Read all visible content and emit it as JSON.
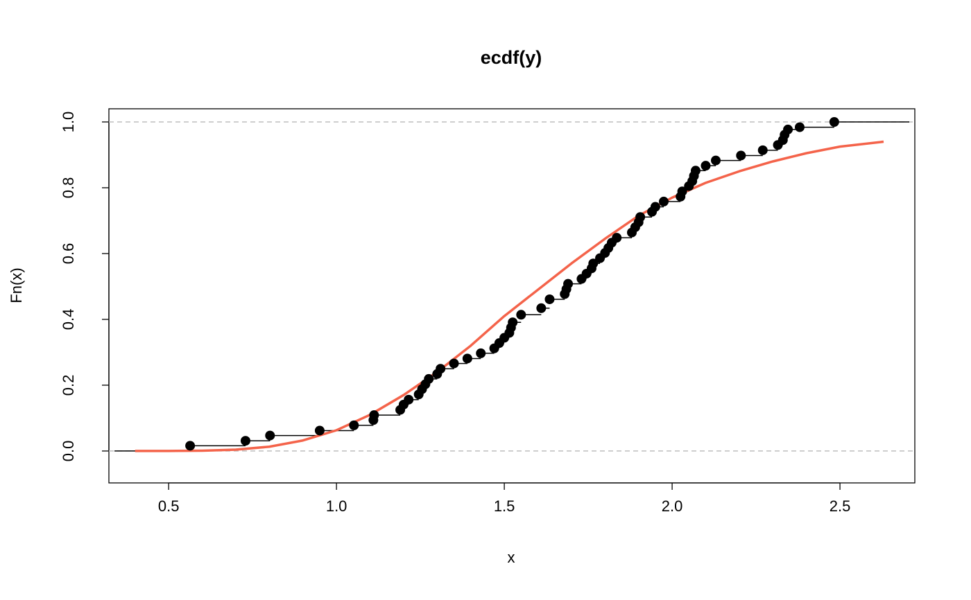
{
  "chart_data": {
    "type": "ecdf",
    "title": "ecdf(y)",
    "x_label": "x",
    "y_label": "Fn(x)",
    "xlim": [
      0.322,
      2.723
    ],
    "ylim": [
      -0.097,
      1.04
    ],
    "xticks": [
      0.5,
      {
        "value": 1,
        "label": "1.0"
      },
      1.5,
      {
        "value": 2,
        "label": "2.0"
      },
      2.5
    ],
    "yticks": [
      {
        "value": 0,
        "label": "0.0"
      },
      0.2,
      0.4,
      0.6,
      0.8,
      {
        "value": 1,
        "label": "1.0"
      }
    ],
    "hlines": [
      0,
      1
    ],
    "hline_color": "#bebebe",
    "series": [
      {
        "color": "#000000",
        "x": [
          0.564,
          0.729,
          0.802,
          0.95,
          1.052,
          1.11,
          1.112,
          1.19,
          1.2,
          1.215,
          1.245,
          1.255,
          1.265,
          1.275,
          1.3,
          1.31,
          1.35,
          1.39,
          1.43,
          1.47,
          1.485,
          1.5,
          1.515,
          1.52,
          1.525,
          1.55,
          1.61,
          1.635,
          1.68,
          1.685,
          1.69,
          1.73,
          1.745,
          1.76,
          1.765,
          1.785,
          1.8,
          1.81,
          1.82,
          1.835,
          1.88,
          1.89,
          1.9,
          1.905,
          1.94,
          1.95,
          1.975,
          2.025,
          2.03,
          2.05,
          2.06,
          2.065,
          2.07,
          2.1,
          2.13,
          2.205,
          2.27,
          2.315,
          2.33,
          2.335,
          2.345,
          2.38,
          2.483
        ],
        "values": [
          0.016,
          0.031,
          0.047,
          0.062,
          0.078,
          0.094,
          0.109,
          0.125,
          0.141,
          0.156,
          0.172,
          0.188,
          0.203,
          0.219,
          0.234,
          0.25,
          0.266,
          0.281,
          0.297,
          0.312,
          0.328,
          0.344,
          0.359,
          0.375,
          0.391,
          0.414,
          0.434,
          0.461,
          0.477,
          0.492,
          0.508,
          0.523,
          0.539,
          0.555,
          0.57,
          0.586,
          0.602,
          0.617,
          0.633,
          0.648,
          0.664,
          0.68,
          0.695,
          0.711,
          0.727,
          0.742,
          0.758,
          0.773,
          0.789,
          0.805,
          0.82,
          0.836,
          0.852,
          0.867,
          0.883,
          0.898,
          0.914,
          0.93,
          0.945,
          0.961,
          0.977,
          0.984,
          1.0
        ]
      },
      {
        "color": "#f4634a",
        "x": [
          0.4,
          0.5,
          0.6,
          0.7,
          0.8,
          0.9,
          1.0,
          1.1,
          1.2,
          1.3,
          1.4,
          1.5,
          1.6,
          1.7,
          1.8,
          1.9,
          2.0,
          2.1,
          2.2,
          2.3,
          2.4,
          2.5,
          2.63
        ],
        "values": [
          0,
          0.0002,
          0.001,
          0.004,
          0.013,
          0.032,
          0.063,
          0.11,
          0.17,
          0.24,
          0.32,
          0.41,
          0.49,
          0.57,
          0.645,
          0.715,
          0.77,
          0.815,
          0.85,
          0.88,
          0.905,
          0.925,
          0.94
        ]
      }
    ]
  }
}
